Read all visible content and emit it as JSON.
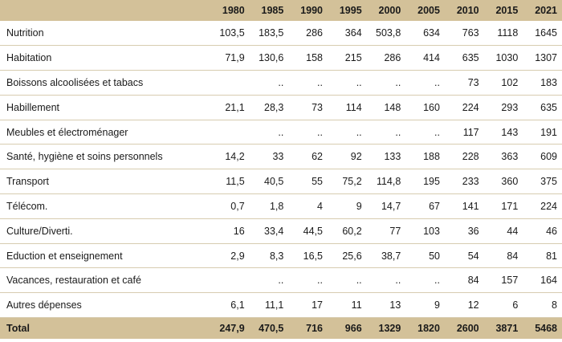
{
  "years": [
    "1980",
    "1985",
    "1990",
    "1995",
    "2000",
    "2005",
    "2010",
    "2015",
    "2021"
  ],
  "rows": [
    {
      "label": "Nutrition",
      "values": [
        "103,5",
        "183,5",
        "286",
        "364",
        "503,8",
        "634",
        "763",
        "1118",
        "1645"
      ]
    },
    {
      "label": "Habitation",
      "values": [
        "71,9",
        "130,6",
        "158",
        "215",
        "286",
        "414",
        "635",
        "1030",
        "1307"
      ]
    },
    {
      "label": "Boissons alcoolisées et tabacs",
      "values": [
        "",
        "..",
        "..",
        "..",
        "..",
        "..",
        "73",
        "102",
        "183"
      ]
    },
    {
      "label": "Habillement",
      "values": [
        "21,1",
        "28,3",
        "73",
        "114",
        "148",
        "160",
        "224",
        "293",
        "635"
      ]
    },
    {
      "label": "Meubles et électroménager",
      "values": [
        "",
        "..",
        "..",
        "..",
        "..",
        "..",
        "117",
        "143",
        "191"
      ]
    },
    {
      "label": "Santé, hygiène et soins personnels",
      "values": [
        "14,2",
        "33",
        "62",
        "92",
        "133",
        "188",
        "228",
        "363",
        "609"
      ]
    },
    {
      "label": "Transport",
      "values": [
        "11,5",
        "40,5",
        "55",
        "75,2",
        "114,8",
        "195",
        "233",
        "360",
        "375"
      ]
    },
    {
      "label": "Télécom.",
      "values": [
        "0,7",
        "1,8",
        "4",
        "9",
        "14,7",
        "67",
        "141",
        "171",
        "224"
      ]
    },
    {
      "label": "Culture/Diverti.",
      "values": [
        "16",
        "33,4",
        "44,5",
        "60,2",
        "77",
        "103",
        "36",
        "44",
        "46"
      ]
    },
    {
      "label": "Eduction et enseignement",
      "values": [
        "2,9",
        "8,3",
        "16,5",
        "25,6",
        "38,7",
        "50",
        "54",
        "84",
        "81"
      ]
    },
    {
      "label": "Vacances, restauration et café",
      "values": [
        "",
        "..",
        "..",
        "..",
        "..",
        "..",
        "84",
        "157",
        "164"
      ]
    },
    {
      "label": "Autres dépenses",
      "values": [
        "6,1",
        "11,1",
        "17",
        "11",
        "13",
        "9",
        "12",
        "6",
        "8"
      ]
    }
  ],
  "total": {
    "label": "Total",
    "values": [
      "247,9",
      "470,5",
      "716",
      "966",
      "1329",
      "1820",
      "2600",
      "3871",
      "5468"
    ]
  },
  "colors": {
    "header_bg": "#d3c199",
    "row_rule": "#d7ccb0"
  }
}
